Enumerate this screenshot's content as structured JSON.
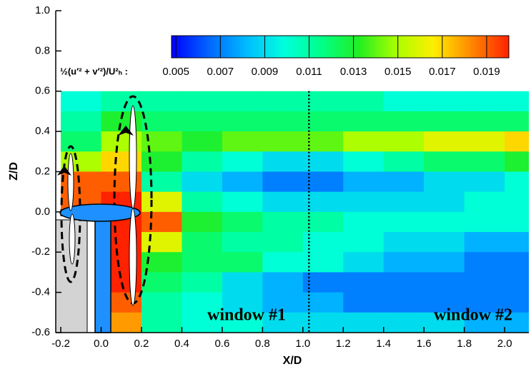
{
  "chart_data": {
    "type": "contour",
    "xlabel": "X/D",
    "ylabel": "Z/D",
    "xlim": [
      -0.225,
      2.12
    ],
    "ylim": [
      -0.6,
      1.0
    ],
    "xticks": [
      -0.2,
      {
        "value": 0,
        "label": "0.0"
      },
      0.2,
      0.4,
      0.6,
      0.8,
      {
        "value": 1,
        "label": "1.0"
      },
      1.2,
      1.4,
      1.6,
      1.8,
      {
        "value": 2,
        "label": "2.0"
      }
    ],
    "yticks": [
      -0.6,
      -0.4,
      -0.2,
      {
        "value": 0,
        "label": "0.0"
      },
      0.2,
      0.4,
      0.6,
      0.8,
      {
        "value": 1,
        "label": "1.0"
      }
    ],
    "field": {
      "x": [
        -0.1,
        0.1,
        0.3,
        0.5,
        0.7,
        0.9,
        1.1,
        1.3,
        1.5,
        1.7,
        1.9,
        2.1
      ],
      "z": [
        0.55,
        0.45,
        0.35,
        0.25,
        0.15,
        0.05,
        -0.05,
        -0.15,
        -0.25,
        -0.35,
        -0.45,
        -0.55
      ],
      "values": [
        [
          0.01,
          0.011,
          0.011,
          0.011,
          0.011,
          0.011,
          0.011,
          0.011,
          0.01,
          0.01,
          0.01,
          0.01
        ],
        [
          0.011,
          0.013,
          0.012,
          0.012,
          0.012,
          0.012,
          0.012,
          0.012,
          0.012,
          0.012,
          0.012,
          0.012
        ],
        [
          0.012,
          0.015,
          0.014,
          0.013,
          0.014,
          0.014,
          0.014,
          0.015,
          0.015,
          0.016,
          0.016,
          0.017
        ],
        [
          0.015,
          0.017,
          0.013,
          0.011,
          0.01,
          0.009,
          0.009,
          0.01,
          0.011,
          0.012,
          0.012,
          0.013
        ],
        [
          0.019,
          0.019,
          0.011,
          0.009,
          0.008,
          0.007,
          0.007,
          0.008,
          0.008,
          0.009,
          0.009,
          0.01
        ],
        [
          0.019,
          0.02,
          0.016,
          0.011,
          0.01,
          0.009,
          0.009,
          0.009,
          0.009,
          0.009,
          0.01,
          0.01
        ],
        [
          null,
          0.02,
          0.019,
          0.013,
          0.012,
          0.011,
          0.011,
          0.01,
          0.01,
          0.01,
          0.01,
          0.01
        ],
        [
          null,
          0.02,
          0.016,
          0.012,
          0.011,
          0.011,
          0.01,
          0.01,
          0.009,
          0.009,
          0.008,
          0.008
        ],
        [
          null,
          0.02,
          0.013,
          0.012,
          0.012,
          0.01,
          0.01,
          0.009,
          0.008,
          0.008,
          0.007,
          0.007
        ],
        [
          null,
          0.02,
          0.012,
          0.011,
          0.009,
          0.008,
          0.007,
          0.007,
          0.007,
          0.007,
          0.007,
          0.007
        ],
        [
          null,
          0.019,
          0.011,
          0.01,
          0.009,
          0.008,
          0.008,
          0.007,
          0.007,
          0.007,
          0.007,
          0.007
        ],
        [
          null,
          0.018,
          0.011,
          0.01,
          0.01,
          0.009,
          0.009,
          0.009,
          0.009,
          0.009,
          0.008,
          0.008
        ]
      ]
    },
    "colorbar": {
      "label": "½(u′² + v′²)/U²ₕ :",
      "clim": [
        0.0048,
        0.02
      ],
      "ticks": [
        0.005,
        0.007,
        0.009,
        0.011,
        0.013,
        0.015,
        0.017,
        0.019
      ],
      "colormap": [
        "#0000ff",
        "#0066ff",
        "#00bbff",
        "#00ffdd",
        "#00ff88",
        "#22ee22",
        "#aaff00",
        "#ffee00",
        "#ff8800",
        "#ff2200"
      ]
    },
    "divider_x": 1.03,
    "annotations": [
      "window #1",
      "window #2"
    ]
  }
}
